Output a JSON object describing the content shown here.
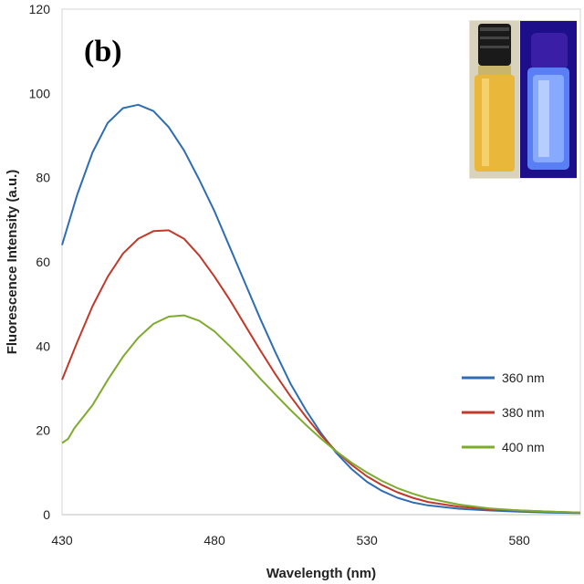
{
  "chart_data": {
    "type": "line",
    "panel_label": "(b)",
    "xlabel": "Wavelength (nm)",
    "ylabel": "Fluorescence Intensity (a.u.)",
    "xlim": [
      430,
      600
    ],
    "ylim": [
      0,
      120
    ],
    "x_ticks": [
      430,
      480,
      530,
      580
    ],
    "y_ticks": [
      0,
      20,
      40,
      60,
      80,
      100,
      120
    ],
    "legend_position": "right-middle",
    "grid": false,
    "inset_image": "vials-daylight-and-uv",
    "series": [
      {
        "name": "360 nm",
        "color": "#2e6db4",
        "points": [
          [
            430,
            64
          ],
          [
            435,
            76
          ],
          [
            440,
            86
          ],
          [
            445,
            93
          ],
          [
            450,
            96.5
          ],
          [
            455,
            97.3
          ],
          [
            460,
            95.8
          ],
          [
            465,
            92
          ],
          [
            470,
            86.5
          ],
          [
            475,
            79.5
          ],
          [
            480,
            72
          ],
          [
            485,
            63.5
          ],
          [
            490,
            55
          ],
          [
            495,
            46.5
          ],
          [
            500,
            38.5
          ],
          [
            505,
            31
          ],
          [
            510,
            24.8
          ],
          [
            515,
            19.3
          ],
          [
            520,
            14.6
          ],
          [
            525,
            10.8
          ],
          [
            530,
            7.8
          ],
          [
            535,
            5.6
          ],
          [
            540,
            4
          ],
          [
            545,
            2.9
          ],
          [
            550,
            2.2
          ],
          [
            560,
            1.4
          ],
          [
            570,
            1
          ],
          [
            580,
            0.7
          ],
          [
            590,
            0.5
          ],
          [
            600,
            0.4
          ]
        ]
      },
      {
        "name": "380 nm",
        "color": "#c0392b",
        "points": [
          [
            430,
            32
          ],
          [
            435,
            41
          ],
          [
            440,
            49.5
          ],
          [
            445,
            56.5
          ],
          [
            450,
            62
          ],
          [
            455,
            65.5
          ],
          [
            460,
            67.3
          ],
          [
            465,
            67.5
          ],
          [
            470,
            65.5
          ],
          [
            475,
            61.5
          ],
          [
            480,
            56.5
          ],
          [
            485,
            51
          ],
          [
            490,
            45
          ],
          [
            495,
            39
          ],
          [
            500,
            33.3
          ],
          [
            505,
            28
          ],
          [
            510,
            23.2
          ],
          [
            515,
            18.8
          ],
          [
            520,
            15
          ],
          [
            525,
            11.8
          ],
          [
            530,
            9.1
          ],
          [
            535,
            7
          ],
          [
            540,
            5.3
          ],
          [
            545,
            4
          ],
          [
            550,
            3
          ],
          [
            560,
            1.9
          ],
          [
            570,
            1.3
          ],
          [
            580,
            1
          ],
          [
            590,
            0.7
          ],
          [
            600,
            0.5
          ]
        ]
      },
      {
        "name": "400 nm",
        "color": "#7dab2e",
        "points": [
          [
            430,
            17
          ],
          [
            432,
            18
          ],
          [
            434,
            20.5
          ],
          [
            440,
            26
          ],
          [
            445,
            32
          ],
          [
            450,
            37.5
          ],
          [
            455,
            42
          ],
          [
            460,
            45.3
          ],
          [
            465,
            47
          ],
          [
            470,
            47.3
          ],
          [
            475,
            46
          ],
          [
            480,
            43.5
          ],
          [
            485,
            40
          ],
          [
            490,
            36.3
          ],
          [
            495,
            32.3
          ],
          [
            500,
            28.5
          ],
          [
            505,
            24.8
          ],
          [
            510,
            21.3
          ],
          [
            515,
            18
          ],
          [
            520,
            15
          ],
          [
            525,
            12.3
          ],
          [
            530,
            10
          ],
          [
            535,
            8
          ],
          [
            540,
            6.3
          ],
          [
            545,
            5
          ],
          [
            550,
            3.9
          ],
          [
            560,
            2.4
          ],
          [
            570,
            1.5
          ],
          [
            580,
            1
          ],
          [
            590,
            0.7
          ],
          [
            600,
            0.5
          ]
        ]
      }
    ]
  }
}
